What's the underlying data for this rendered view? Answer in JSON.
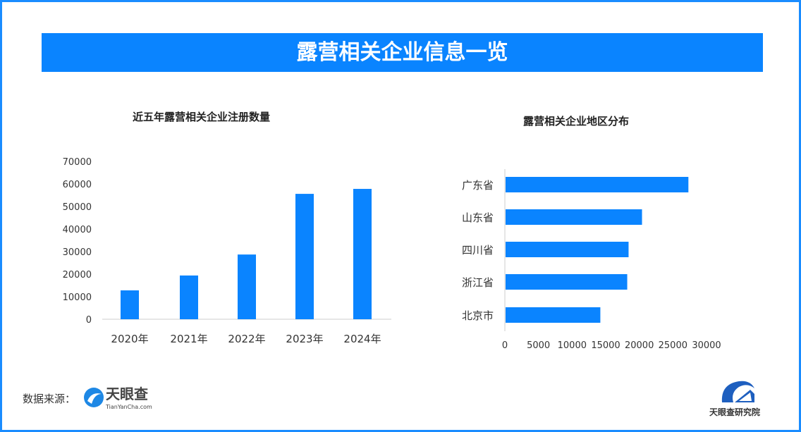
{
  "title": "露营相关企业信息一览",
  "footer": {
    "source_label": "数据来源：",
    "source_logo_text": "天眼查",
    "source_logo_url": "TianYanCha.com",
    "institute_logo_text": "天眼查研究院"
  },
  "colors": {
    "accent": "#0a84ff",
    "frame": "#1a8cff"
  },
  "chart_data": [
    {
      "type": "bar",
      "title": "近五年露营相关企业注册数量",
      "categories": [
        "2020年",
        "2021年",
        "2022年",
        "2023年",
        "2024年"
      ],
      "values": [
        12800,
        19400,
        28700,
        55600,
        57800
      ],
      "ylim": [
        0,
        70000
      ],
      "yticks": [
        "0",
        "10000",
        "20000",
        "30000",
        "40000",
        "50000",
        "60000",
        "70000"
      ],
      "grid": false
    },
    {
      "type": "bar",
      "orientation": "horizontal",
      "title": "露营相关企业地区分布",
      "categories": [
        "广东省",
        "山东省",
        "四川省",
        "浙江省",
        "北京市"
      ],
      "values": [
        27200,
        20300,
        18300,
        18100,
        14100
      ],
      "xlim": [
        0,
        30000
      ],
      "xticks": [
        "0",
        "5000",
        "10000",
        "15000",
        "20000",
        "25000",
        "30000"
      ],
      "grid": false
    }
  ]
}
